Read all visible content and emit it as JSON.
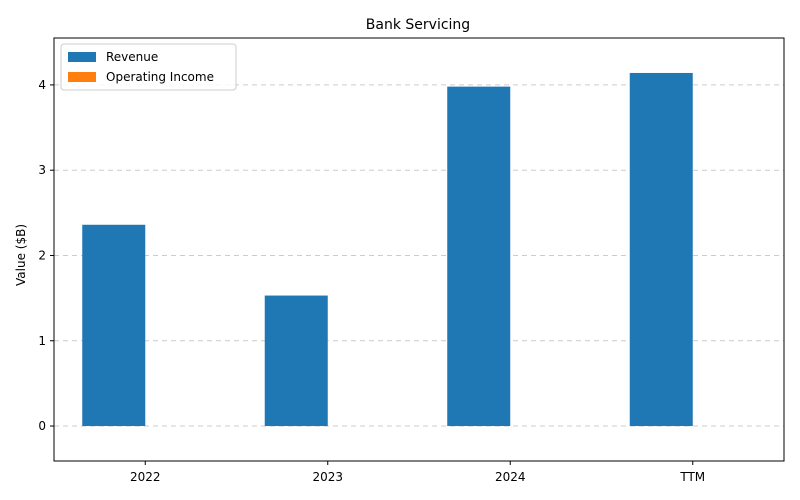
{
  "chart_data": {
    "type": "bar",
    "title": "Bank Servicing",
    "xlabel": "",
    "ylabel": "Value ($B)",
    "categories": [
      "2022",
      "2023",
      "2024",
      "TTM"
    ],
    "series": [
      {
        "name": "Revenue",
        "values": [
          2.36,
          1.53,
          3.98,
          4.14
        ],
        "color": "#1f77b4"
      },
      {
        "name": "Operating Income",
        "values": [
          0,
          0,
          0,
          0
        ],
        "color": "#ff7f0e"
      }
    ],
    "ylim": [
      -0.41,
      4.55
    ],
    "yticks": [
      0,
      1,
      2,
      3,
      4
    ],
    "grid": "y-dashed",
    "legend_position": "top-left"
  }
}
